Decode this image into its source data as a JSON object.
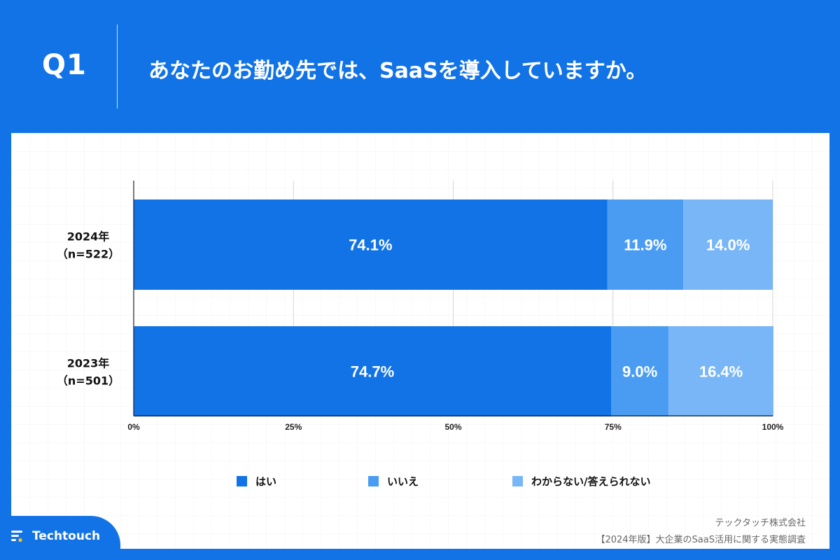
{
  "header": {
    "question": "Q1",
    "title": "あなたのお勤め先では、SaaSを導入していますか。"
  },
  "chart_data": {
    "type": "bar",
    "orientation": "horizontal",
    "stacked": true,
    "categories": [
      [
        "2024年",
        "（n=522）"
      ],
      [
        "2023年",
        "（n=501）"
      ]
    ],
    "series": [
      {
        "name": "はい",
        "values": [
          74.1,
          74.7
        ],
        "color": "#1273e6"
      },
      {
        "name": "いいえ",
        "values": [
          11.9,
          9.0
        ],
        "color": "#4a9cf2"
      },
      {
        "name": "わからない/答えられない",
        "values": [
          14.0,
          16.4
        ],
        "color": "#78b6f7"
      }
    ],
    "data_label_suffix": "%",
    "xlim": [
      0,
      100
    ],
    "x_ticks": [
      0,
      25,
      50,
      75,
      100
    ],
    "x_tick_labels": [
      "0%",
      "25%",
      "50%",
      "75%",
      "100%"
    ],
    "grid": true,
    "legend_position": "bottom"
  },
  "footer": {
    "company": "テックタッチ株式会社",
    "report": "【2024年版】大企業のSaaS活用に関する実態調査",
    "logo_text": "Techtouch"
  }
}
